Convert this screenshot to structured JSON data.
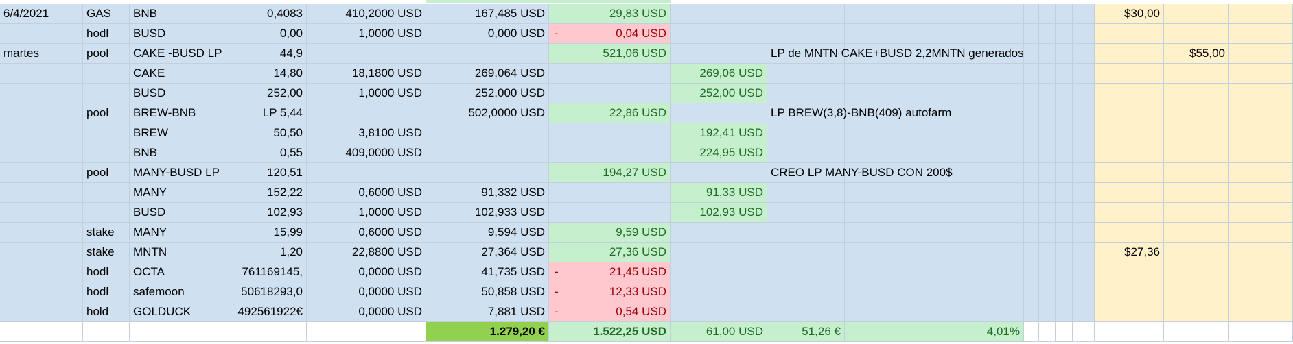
{
  "rows": [
    {
      "date": "6/4/2021",
      "type": "GAS",
      "asset": "BNB",
      "qty": "0,4083",
      "price": "410,2000 USD",
      "value": "167,485 USD",
      "pl": "29,83 USD",
      "pl_kind": "pos",
      "sub": "",
      "note": "",
      "usd": "$30,00",
      "usd2": ""
    },
    {
      "date": "",
      "type": "hodl",
      "asset": "BUSD",
      "qty": "0,00",
      "price": "1,0000 USD",
      "value": "0,000 USD",
      "pl": "0,04 USD",
      "pl_kind": "neg",
      "sub": "",
      "note": "",
      "usd": "",
      "usd2": ""
    },
    {
      "date": "martes",
      "type": "pool",
      "asset": "CAKE -BUSD LP",
      "qty": "44,9",
      "price": "",
      "value": "",
      "pl": "521,06 USD",
      "pl_kind": "pos",
      "sub": "",
      "note": "LP de MNTN CAKE+BUSD 2,2MNTN generados",
      "usd": "",
      "usd2": "$55,00"
    },
    {
      "date": "",
      "type": "",
      "asset": "CAKE",
      "qty": "14,80",
      "price": "18,1800 USD",
      "value": "269,064 USD",
      "pl": "",
      "pl_kind": "",
      "sub": "269,06 USD",
      "note": "",
      "usd": "",
      "usd2": ""
    },
    {
      "date": "",
      "type": "",
      "asset": "BUSD",
      "qty": "252,00",
      "price": "1,0000 USD",
      "value": "252,000 USD",
      "pl": "",
      "pl_kind": "",
      "sub": "252,00 USD",
      "note": "",
      "usd": "",
      "usd2": ""
    },
    {
      "date": "",
      "type": "pool",
      "asset": "BREW-BNB",
      "qty": "LP 5,44",
      "price": "",
      "value": "502,0000 USD",
      "pl": "22,86 USD",
      "pl_kind": "pos",
      "sub": "",
      "note": "LP BREW(3,8)-BNB(409) autofarm",
      "usd": "",
      "usd2": ""
    },
    {
      "date": "",
      "type": "",
      "asset": "BREW",
      "qty": "50,50",
      "price": "3,8100 USD",
      "value": "",
      "pl": "",
      "pl_kind": "",
      "sub": "192,41 USD",
      "note": "",
      "usd": "",
      "usd2": ""
    },
    {
      "date": "",
      "type": "",
      "asset": "BNB",
      "qty": "0,55",
      "price": "409,0000 USD",
      "value": "",
      "pl": "",
      "pl_kind": "",
      "sub": "224,95 USD",
      "note": "",
      "usd": "",
      "usd2": ""
    },
    {
      "date": "",
      "type": "pool",
      "asset": "MANY-BUSD LP",
      "qty": "120,51",
      "price": "",
      "value": "",
      "pl": "194,27 USD",
      "pl_kind": "pos",
      "sub": "",
      "note": "CREO LP MANY-BUSD CON 200$",
      "usd": "",
      "usd2": ""
    },
    {
      "date": "",
      "type": "",
      "asset": "MANY",
      "qty": "152,22",
      "price": "0,6000 USD",
      "value": "91,332 USD",
      "pl": "",
      "pl_kind": "",
      "sub": "91,33 USD",
      "note": "",
      "usd": "",
      "usd2": ""
    },
    {
      "date": "",
      "type": "",
      "asset": "BUSD",
      "qty": "102,93",
      "price": "1,0000 USD",
      "value": "102,933 USD",
      "pl": "",
      "pl_kind": "",
      "sub": "102,93 USD",
      "note": "",
      "usd": "",
      "usd2": ""
    },
    {
      "date": "",
      "type": "stake",
      "asset": "MANY",
      "qty": "15,99",
      "price": "0,6000 USD",
      "value": "9,594 USD",
      "pl": "9,59 USD",
      "pl_kind": "pos",
      "sub": "",
      "note": "",
      "usd": "",
      "usd2": ""
    },
    {
      "date": "",
      "type": "stake",
      "asset": "MNTN",
      "qty": "1,20",
      "price": "22,8800 USD",
      "value": "27,364 USD",
      "pl": "27,36 USD",
      "pl_kind": "pos",
      "sub": "",
      "note": "",
      "usd": "$27,36",
      "usd2": ""
    },
    {
      "date": "",
      "type": "hodl",
      "asset": "OCTA",
      "qty": "761169145,",
      "price": "0,0000 USD",
      "value": "41,735 USD",
      "pl": "21,45 USD",
      "pl_kind": "neg",
      "sub": "",
      "note": "",
      "usd": "",
      "usd2": ""
    },
    {
      "date": "",
      "type": "hodl",
      "asset": "safemoon",
      "qty": "50618293,0",
      "price": "0,0000 USD",
      "value": "50,858 USD",
      "pl": "12,33 USD",
      "pl_kind": "neg",
      "sub": "",
      "note": "",
      "usd": "",
      "usd2": ""
    },
    {
      "date": "",
      "type": "hold",
      "asset": "GOLDUCK",
      "qty": "492561922€",
      "price": "0,0000 USD",
      "value": "7,881 USD",
      "pl": "0,54 USD",
      "pl_kind": "neg",
      "sub": "",
      "note": "",
      "usd": "",
      "usd2": ""
    }
  ],
  "negative_sign": "-",
  "totals": {
    "eur_total": "1.279,20 €",
    "usd_total": "1.522,25 USD",
    "sub_total": "61,00 USD",
    "eur2": "51,26 €",
    "percent": "4,01%"
  }
}
